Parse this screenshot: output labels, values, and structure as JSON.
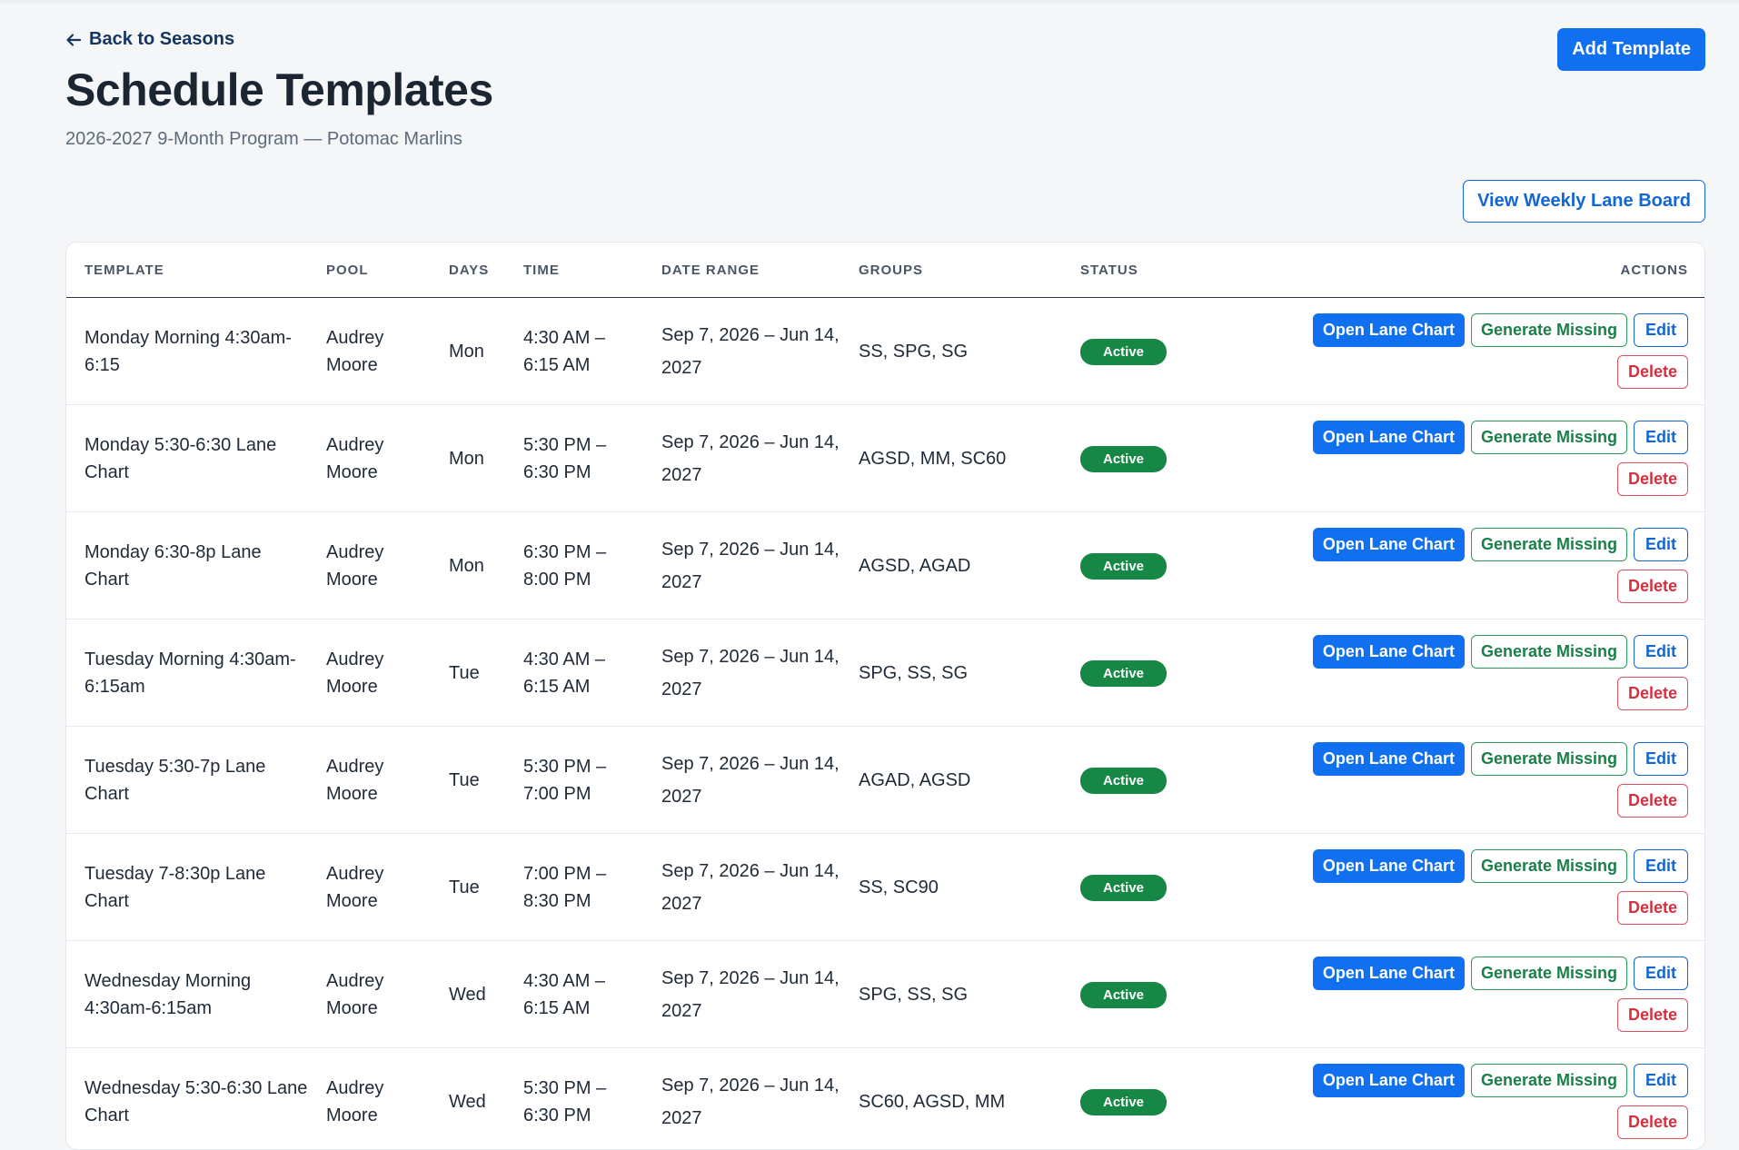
{
  "header": {
    "back_link": "Back to Seasons",
    "title": "Schedule Templates",
    "subtitle": "2026-2027 9-Month Program — Potomac Marlins",
    "add_button": "Add Template",
    "weekly_board_button": "View Weekly Lane Board"
  },
  "icons": {
    "back": "arrow-left-icon"
  },
  "colors": {
    "primary": "#1070f0",
    "success": "#178745",
    "danger": "#d92e3e",
    "heading": "#1c2633"
  },
  "table": {
    "columns": [
      "TEMPLATE",
      "POOL",
      "DAYS",
      "TIME",
      "DATE RANGE",
      "GROUPS",
      "STATUS",
      "ACTIONS"
    ],
    "action_labels": {
      "open": "Open Lane Chart",
      "generate": "Generate Missing",
      "edit": "Edit",
      "delete": "Delete"
    },
    "rows": [
      {
        "template": "Monday Morning 4:30am-6:15",
        "pool": "Audrey Moore",
        "days": "Mon",
        "time": "4:30 AM – 6:15 AM",
        "date_range": "Sep 7, 2026 – Jun 14, 2027",
        "groups": "SS, SPG, SG",
        "status": "Active"
      },
      {
        "template": "Monday 5:30-6:30 Lane Chart",
        "pool": "Audrey Moore",
        "days": "Mon",
        "time": "5:30 PM – 6:30 PM",
        "date_range": "Sep 7, 2026 – Jun 14, 2027",
        "groups": "AGSD, MM, SC60",
        "status": "Active"
      },
      {
        "template": "Monday 6:30-8p Lane Chart",
        "pool": "Audrey Moore",
        "days": "Mon",
        "time": "6:30 PM – 8:00 PM",
        "date_range": "Sep 7, 2026 – Jun 14, 2027",
        "groups": "AGSD, AGAD",
        "status": "Active"
      },
      {
        "template": "Tuesday Morning 4:30am-6:15am",
        "pool": "Audrey Moore",
        "days": "Tue",
        "time": "4:30 AM – 6:15 AM",
        "date_range": "Sep 7, 2026 – Jun 14, 2027",
        "groups": "SPG, SS, SG",
        "status": "Active"
      },
      {
        "template": "Tuesday 5:30-7p Lane Chart",
        "pool": "Audrey Moore",
        "days": "Tue",
        "time": "5:30 PM – 7:00 PM",
        "date_range": "Sep 7, 2026 – Jun 14, 2027",
        "groups": "AGAD, AGSD",
        "status": "Active"
      },
      {
        "template": "Tuesday 7-8:30p Lane Chart",
        "pool": "Audrey Moore",
        "days": "Tue",
        "time": "7:00 PM – 8:30 PM",
        "date_range": "Sep 7, 2026 – Jun 14, 2027",
        "groups": "SS, SC90",
        "status": "Active"
      },
      {
        "template": "Wednesday Morning 4:30am-6:15am",
        "pool": "Audrey Moore",
        "days": "Wed",
        "time": "4:30 AM – 6:15 AM",
        "date_range": "Sep 7, 2026 – Jun 14, 2027",
        "groups": "SPG, SS, SG",
        "status": "Active"
      },
      {
        "template": "Wednesday 5:30-6:30 Lane Chart",
        "pool": "Audrey Moore",
        "days": "Wed",
        "time": "5:30 PM – 6:30 PM",
        "date_range": "Sep 7, 2026 – Jun 14, 2027",
        "groups": "SC60, AGSD, MM",
        "status": "Active"
      }
    ]
  }
}
